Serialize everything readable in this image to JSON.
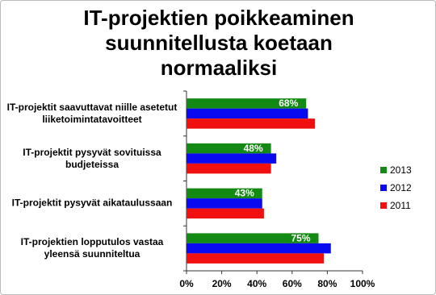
{
  "chart_data": {
    "type": "hbar",
    "title": "IT-projektien poikkeaminen suunnitellusta koetaan normaaliksi",
    "categories": [
      "IT-projektit saavuttavat niille asetetut liiketoimintatavoitteet",
      "IT-projektit pysyvät sovituissa budjeteissa",
      "IT-projektit pysyvät aikataulussaan",
      "IT-projektien lopputulos vastaa yleensä suunniteltua"
    ],
    "series": [
      {
        "name": "2013",
        "color": "#138a13",
        "values": [
          68,
          48,
          43,
          75
        ],
        "value_labels": [
          "68%",
          "48%",
          "43%",
          "75%"
        ]
      },
      {
        "name": "2012",
        "color": "#0a0af0",
        "values": [
          69,
          51,
          43,
          82
        ]
      },
      {
        "name": "2011",
        "color": "#f01010",
        "values": [
          73,
          48,
          44,
          78
        ]
      }
    ],
    "xlim": [
      0,
      100
    ],
    "xticks": [
      {
        "value": 0,
        "label": "0%"
      },
      {
        "value": 20,
        "label": "20%"
      },
      {
        "value": 40,
        "label": "40%"
      },
      {
        "value": 60,
        "label": "60%"
      },
      {
        "value": 80,
        "label": "80%"
      },
      {
        "value": 100,
        "label": "100%"
      }
    ],
    "legend": "right"
  }
}
